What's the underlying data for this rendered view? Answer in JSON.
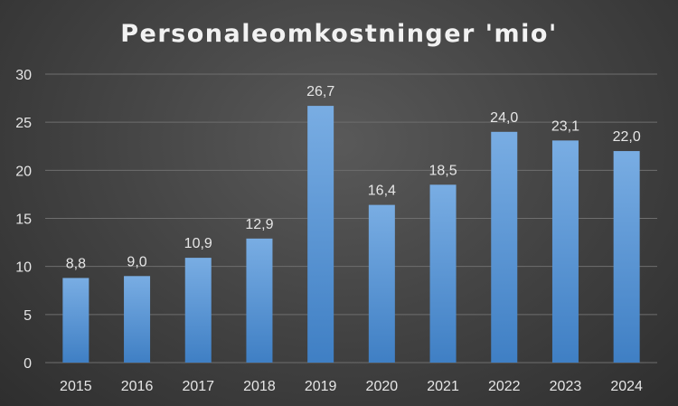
{
  "chart_data": {
    "type": "bar",
    "title": "Personaleomkostninger 'mio'",
    "xlabel": "",
    "ylabel": "",
    "categories": [
      "2015",
      "2016",
      "2017",
      "2018",
      "2019",
      "2020",
      "2021",
      "2022",
      "2023",
      "2024"
    ],
    "values": [
      8.8,
      9.0,
      10.9,
      12.9,
      26.7,
      16.4,
      18.5,
      24.0,
      23.1,
      22.0
    ],
    "data_labels": [
      "8,8",
      "9,0",
      "10,9",
      "12,9",
      "26,7",
      "16,4",
      "18,5",
      "24,0",
      "23,1",
      "22,0"
    ],
    "ylim": [
      0,
      30
    ],
    "yticks": [
      0,
      5,
      10,
      15,
      20,
      25,
      30
    ],
    "grid": true,
    "legend": "none",
    "colors": {
      "bar_top": "#79ade3",
      "bar_bottom": "#3f7fc4",
      "gridline": "#6e6e6e",
      "text": "#e6e6e6",
      "title": "#f2f2f2"
    }
  }
}
